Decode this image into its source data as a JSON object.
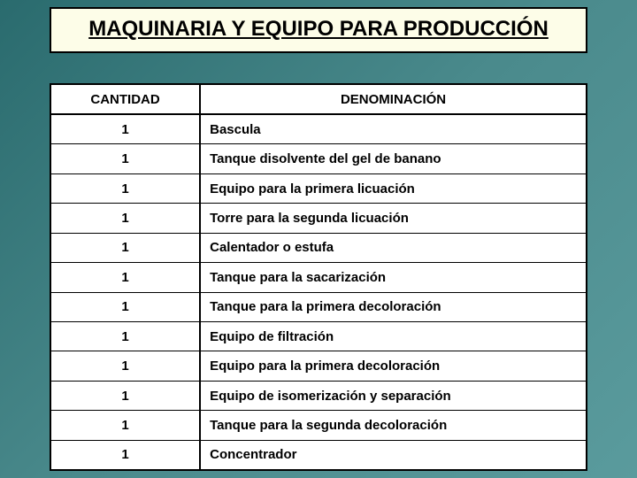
{
  "title": "MAQUINARIA Y EQUIPO PARA PRODUCCIÓN",
  "table": {
    "headers": {
      "qty": "CANTIDAD",
      "name": "DENOMINACIÓN"
    },
    "rows": [
      {
        "qty": "1",
        "name": "Bascula"
      },
      {
        "qty": "1",
        "name": "Tanque disolvente del gel de banano"
      },
      {
        "qty": "1",
        "name": "Equipo para la primera licuación"
      },
      {
        "qty": "1",
        "name": "Torre para la segunda licuación"
      },
      {
        "qty": "1",
        "name": "Calentador o estufa"
      },
      {
        "qty": "1",
        "name": "Tanque para la sacarización"
      },
      {
        "qty": "1",
        "name": "Tanque para la primera decoloración"
      },
      {
        "qty": "1",
        "name": "Equipo de filtración"
      },
      {
        "qty": "1",
        "name": "Equipo para la primera decoloración"
      },
      {
        "qty": "1",
        "name": "Equipo de isomerización y separación"
      },
      {
        "qty": "1",
        "name": "Tanque para la segunda decoloración"
      },
      {
        "qty": "1",
        "name": "Concentrador"
      }
    ]
  },
  "colors": {
    "background_gradient_start": "#2a6b6e",
    "background_gradient_mid": "#4a8a8c",
    "background_gradient_end": "#5a9b9d",
    "title_bg": "#fdfde8",
    "border": "#000000",
    "table_bg": "#ffffff"
  },
  "typography": {
    "title_fontsize": 24,
    "header_fontsize": 15,
    "cell_fontsize": 15,
    "font_family": "Verdana, Arial, sans-serif"
  },
  "layout": {
    "col_qty_width_pct": 28,
    "col_name_width_pct": 72
  }
}
